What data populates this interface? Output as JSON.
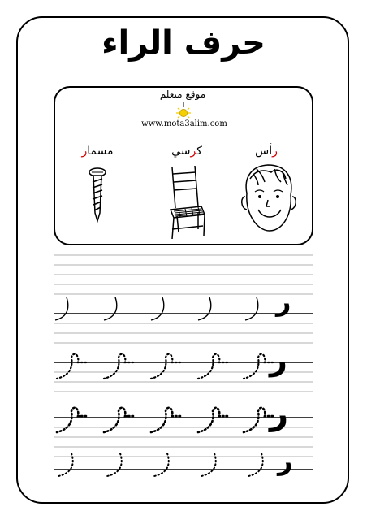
{
  "page": {
    "title": "حرف الراء",
    "logo_text": "موقع متعلم",
    "url": "www.mota3alim.com"
  },
  "words": [
    {
      "letter": "ر",
      "rest": "أس"
    },
    {
      "letter": "ر",
      "rest": "كسي",
      "full_prefix": "ك"
    },
    {
      "letter": "ر",
      "rest": "مسما"
    }
  ],
  "words_display": {
    "head": {
      "pre": "",
      "hl": "ر",
      "post": "أس"
    },
    "chair": {
      "pre": "ك",
      "hl": "ر",
      "post": "سي"
    },
    "nail": {
      "pre": "مسما",
      "hl": "ر",
      "post": ""
    }
  },
  "practice": {
    "model_letter": "ر",
    "row_styles": [
      "isolated-thin",
      "medial-dotted",
      "medial-bold",
      "isolated-thin-2"
    ]
  },
  "icons": [
    "bulb-icon",
    "nail-icon",
    "chair-icon",
    "head-icon"
  ],
  "colors": {
    "highlight": "#d40000",
    "ink": "#000000"
  }
}
